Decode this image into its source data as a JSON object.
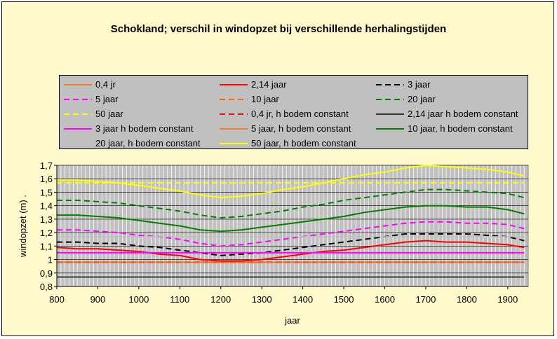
{
  "chart_data": {
    "type": "line",
    "title": "Schokland; verschil in windopzet bij verschillende herhalingstijden",
    "xlabel": "jaar",
    "ylabel": "windopzet (m) .",
    "xlim": [
      800,
      1950
    ],
    "ylim": [
      0.8,
      1.7
    ],
    "x_ticks": [
      "800",
      "900",
      "1000",
      "1100",
      "1200",
      "1300",
      "1400",
      "1500",
      "1600",
      "1700",
      "1800",
      "1900"
    ],
    "y_ticks": [
      "0,8",
      "0,9",
      "1",
      "1,1",
      "1,2",
      "1,3",
      "1,4",
      "1,5",
      "1,6",
      "1,7"
    ],
    "grid": true,
    "legend_position": "top",
    "series": [
      {
        "name": "0,4 jr",
        "color": "#FF6600",
        "dash": "solid",
        "width": 1.5,
        "x": [
          800,
          1940
        ],
        "y": [
          0.98,
          0.98
        ]
      },
      {
        "name": "2,14 jaar",
        "color": "#FF0000",
        "dash": "solid",
        "width": 2,
        "x": [
          800,
          850,
          900,
          950,
          1000,
          1050,
          1100,
          1150,
          1200,
          1250,
          1300,
          1350,
          1400,
          1450,
          1500,
          1550,
          1600,
          1650,
          1700,
          1750,
          1800,
          1850,
          1900,
          1940
        ],
        "y": [
          1.09,
          1.08,
          1.08,
          1.07,
          1.06,
          1.04,
          1.03,
          1.0,
          0.99,
          0.99,
          1.0,
          1.02,
          1.04,
          1.06,
          1.07,
          1.09,
          1.11,
          1.13,
          1.14,
          1.13,
          1.13,
          1.12,
          1.11,
          1.09
        ]
      },
      {
        "name": "3 jaar",
        "color": "#000000",
        "dash": "dash",
        "width": 2,
        "x": [
          800,
          850,
          900,
          950,
          1000,
          1050,
          1100,
          1150,
          1200,
          1250,
          1300,
          1350,
          1400,
          1450,
          1500,
          1550,
          1600,
          1650,
          1700,
          1750,
          1800,
          1850,
          1900,
          1940
        ],
        "y": [
          1.13,
          1.13,
          1.12,
          1.12,
          1.1,
          1.09,
          1.07,
          1.05,
          1.03,
          1.04,
          1.05,
          1.07,
          1.09,
          1.11,
          1.13,
          1.15,
          1.17,
          1.19,
          1.19,
          1.19,
          1.19,
          1.18,
          1.17,
          1.14
        ]
      },
      {
        "name": "5 jaar",
        "color": "#FF00FF",
        "dash": "dash",
        "width": 2,
        "x": [
          800,
          850,
          900,
          950,
          1000,
          1050,
          1100,
          1150,
          1200,
          1250,
          1300,
          1350,
          1400,
          1450,
          1500,
          1550,
          1600,
          1650,
          1700,
          1750,
          1800,
          1850,
          1900,
          1940
        ],
        "y": [
          1.22,
          1.22,
          1.21,
          1.2,
          1.18,
          1.17,
          1.15,
          1.12,
          1.1,
          1.11,
          1.13,
          1.15,
          1.17,
          1.19,
          1.21,
          1.23,
          1.25,
          1.27,
          1.28,
          1.28,
          1.27,
          1.27,
          1.26,
          1.23
        ]
      },
      {
        "name": "10 jaar",
        "color": "#FF6600",
        "dash": "dash",
        "width": 2,
        "x": [
          800,
          1940
        ],
        "y": [
          0.98,
          0.98
        ]
      },
      {
        "name": "20 jaar",
        "color": "#008000",
        "dash": "dash",
        "width": 2,
        "x": [
          800,
          850,
          900,
          950,
          1000,
          1050,
          1100,
          1150,
          1200,
          1250,
          1300,
          1350,
          1400,
          1450,
          1500,
          1550,
          1600,
          1650,
          1700,
          1750,
          1800,
          1850,
          1900,
          1940
        ],
        "y": [
          1.44,
          1.44,
          1.43,
          1.42,
          1.4,
          1.38,
          1.36,
          1.33,
          1.31,
          1.32,
          1.34,
          1.36,
          1.39,
          1.41,
          1.44,
          1.46,
          1.48,
          1.5,
          1.52,
          1.52,
          1.51,
          1.5,
          1.49,
          1.46
        ]
      },
      {
        "name": "50 jaar",
        "color": "#FFFF00",
        "dash": "dash",
        "width": 2,
        "x": [
          800,
          1940
        ],
        "y": [
          1.57,
          1.57
        ]
      },
      {
        "name": "0,4 jr, h bodem constant",
        "color": "#FF0000",
        "dash": "dash",
        "width": 2,
        "x": [
          800,
          1940
        ],
        "y": [
          0.98,
          0.98
        ]
      },
      {
        "name": "2,14 jaar h bodem constant",
        "color": "#000000",
        "dash": "solid",
        "width": 1.5,
        "x": [
          800,
          1940
        ],
        "y": [
          0.87,
          0.87
        ]
      },
      {
        "name": "3 jaar h bodem constant",
        "color": "#FF00FF",
        "dash": "solid",
        "width": 2,
        "x": [
          800,
          1940
        ],
        "y": [
          1.05,
          1.05
        ]
      },
      {
        "name": "5 jaar, h bodem constant",
        "color": "#FF6600",
        "dash": "solid",
        "width": 1.5,
        "x": [
          800,
          1940
        ],
        "y": [
          0.98,
          0.98
        ]
      },
      {
        "name": "10 jaar, h bodem constant",
        "color": "#008000",
        "dash": "solid",
        "width": 2,
        "x": [
          800,
          850,
          900,
          950,
          1000,
          1050,
          1100,
          1150,
          1200,
          1250,
          1300,
          1350,
          1400,
          1450,
          1500,
          1550,
          1600,
          1650,
          1700,
          1750,
          1800,
          1850,
          1900,
          1940
        ],
        "y": [
          1.33,
          1.33,
          1.32,
          1.31,
          1.29,
          1.27,
          1.25,
          1.22,
          1.21,
          1.22,
          1.24,
          1.26,
          1.28,
          1.3,
          1.32,
          1.35,
          1.37,
          1.39,
          1.4,
          1.4,
          1.39,
          1.39,
          1.37,
          1.34
        ]
      },
      {
        "name": "20 jaar, h bodem constant",
        "color": "#C0C0C0",
        "dash": "solid",
        "width": 1.5,
        "x": [
          800,
          1940
        ],
        "y": [
          1.17,
          1.17
        ]
      },
      {
        "name": "50 jaar, h bodem constant",
        "color": "#FFFF00",
        "dash": "solid",
        "width": 2,
        "x": [
          800,
          850,
          900,
          950,
          1000,
          1050,
          1100,
          1150,
          1200,
          1250,
          1300,
          1350,
          1400,
          1450,
          1500,
          1550,
          1600,
          1650,
          1700,
          1750,
          1800,
          1850,
          1900,
          1940
        ],
        "y": [
          1.59,
          1.59,
          1.58,
          1.57,
          1.55,
          1.53,
          1.51,
          1.48,
          1.46,
          1.47,
          1.49,
          1.52,
          1.54,
          1.57,
          1.6,
          1.63,
          1.65,
          1.68,
          1.7,
          1.69,
          1.68,
          1.67,
          1.65,
          1.62
        ]
      }
    ]
  }
}
